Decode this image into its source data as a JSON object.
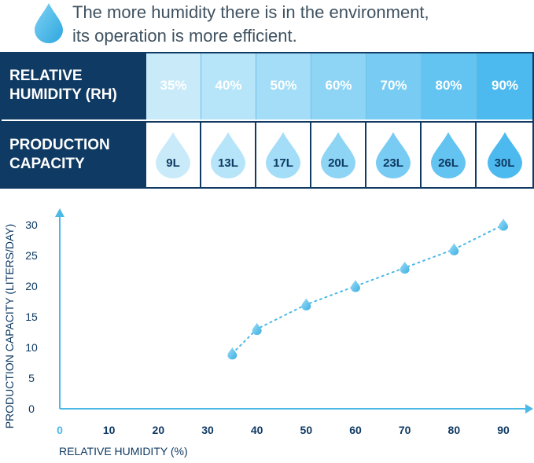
{
  "header": {
    "line1": "The more humidity there is in the environment,",
    "line2": "its operation is more efficient.",
    "icon": "water-drop-icon"
  },
  "table": {
    "rh_label_line1": "RELATIVE",
    "rh_label_line2": "HUMIDITY (RH)",
    "pc_label_line1": "PRODUCTION",
    "pc_label_line2": "CAPACITY",
    "columns": [
      {
        "rh": "35%",
        "capacity": "9L",
        "color": "#c9ebf9"
      },
      {
        "rh": "40%",
        "capacity": "13L",
        "color": "#b6e4f8"
      },
      {
        "rh": "50%",
        "capacity": "17L",
        "color": "#a3ddf7"
      },
      {
        "rh": "60%",
        "capacity": "20L",
        "color": "#8dd4f5"
      },
      {
        "rh": "70%",
        "capacity": "23L",
        "color": "#78cbf3"
      },
      {
        "rh": "80%",
        "capacity": "26L",
        "color": "#63c3f1"
      },
      {
        "rh": "90%",
        "capacity": "30L",
        "color": "#4cbaef"
      }
    ]
  },
  "chart_data": {
    "type": "line",
    "xlabel": "RELATIVE HUMIDITY (%)",
    "ylabel": "PRODUCTION CAPACITY (LITERS/DAY)",
    "xlim": [
      0,
      90
    ],
    "ylim": [
      0,
      30
    ],
    "x_ticks": [
      "0",
      "10",
      "20",
      "30",
      "40",
      "50",
      "60",
      "70",
      "80",
      "90"
    ],
    "y_ticks": [
      "0",
      "5",
      "10",
      "15",
      "20",
      "25",
      "30"
    ],
    "x": [
      35,
      40,
      50,
      60,
      70,
      80,
      90
    ],
    "y": [
      9,
      13,
      17,
      20,
      23,
      26,
      30
    ],
    "line_style": "dotted",
    "marker": "water-drop",
    "color": "#4cb8e6",
    "axis_color": "#4cb8e6",
    "tick_color": "#0f3a63"
  }
}
